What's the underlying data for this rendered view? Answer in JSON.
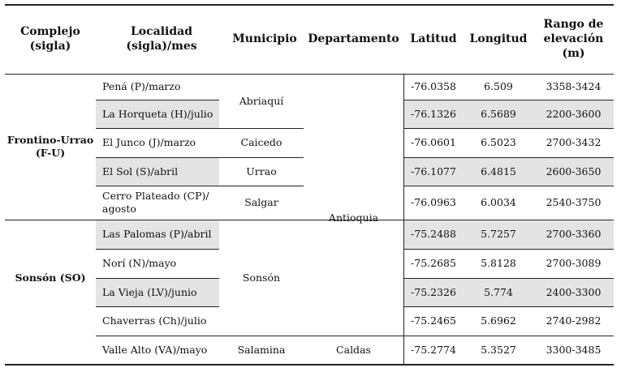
{
  "table": {
    "headers": {
      "complejo": "Complejo\n(sigla)",
      "localidad": "Localidad\n(sigla)/mes",
      "municipio": "Municipio",
      "departamento": "Departamento",
      "latitud": "Latitud",
      "longitud": "Longitud",
      "elevacion": "Rango de\nelevación\n(m)"
    },
    "groups": [
      "Frontino-Urrao\n(F-U)",
      "Sonsón (SO)"
    ],
    "municipios": [
      "Abriaquí",
      "Caicedo",
      "Urrao",
      "Salgar",
      "Sonsón",
      "Salamina"
    ],
    "departamentos": [
      "Antioquia",
      "Caldas"
    ],
    "rows": [
      {
        "localidad": "Pená (P)/marzo",
        "latitud": "-76.0358",
        "longitud": "6.509",
        "elevacion": "3358-3424"
      },
      {
        "localidad": "La Horqueta (H)/julio",
        "latitud": "-76.1326",
        "longitud": "6.5689",
        "elevacion": "2200-3600"
      },
      {
        "localidad": "El Junco (J)/marzo",
        "latitud": "-76.0601",
        "longitud": "6.5023",
        "elevacion": "2700-3432"
      },
      {
        "localidad": "El Sol (S)/abril",
        "latitud": "-76.1077",
        "longitud": "6.4815",
        "elevacion": "2600-3650"
      },
      {
        "localidad": "Cerro Plateado (CP)/\nagosto",
        "latitud": "-76.0963",
        "longitud": "6.0034",
        "elevacion": "2540-3750"
      },
      {
        "localidad": "Las Palomas (P)/abril",
        "latitud": "-75.2488",
        "longitud": "5.7257",
        "elevacion": "2700-3360"
      },
      {
        "localidad": "Norí (N)/mayo",
        "latitud": "-75.2685",
        "longitud": "5.8128",
        "elevacion": "2700-3089"
      },
      {
        "localidad": "La Vieja (LV)/junio",
        "latitud": "-75.2326",
        "longitud": "5.774",
        "elevacion": "2400-3300"
      },
      {
        "localidad": "Chaverras (Ch)/julio",
        "latitud": "-75.2465",
        "longitud": "5.6962",
        "elevacion": "2740-2982"
      },
      {
        "localidad": "Valle Alto (VA)/mayo",
        "latitud": "-75.2774",
        "longitud": "5.3527",
        "elevacion": "3300-3485"
      }
    ]
  }
}
